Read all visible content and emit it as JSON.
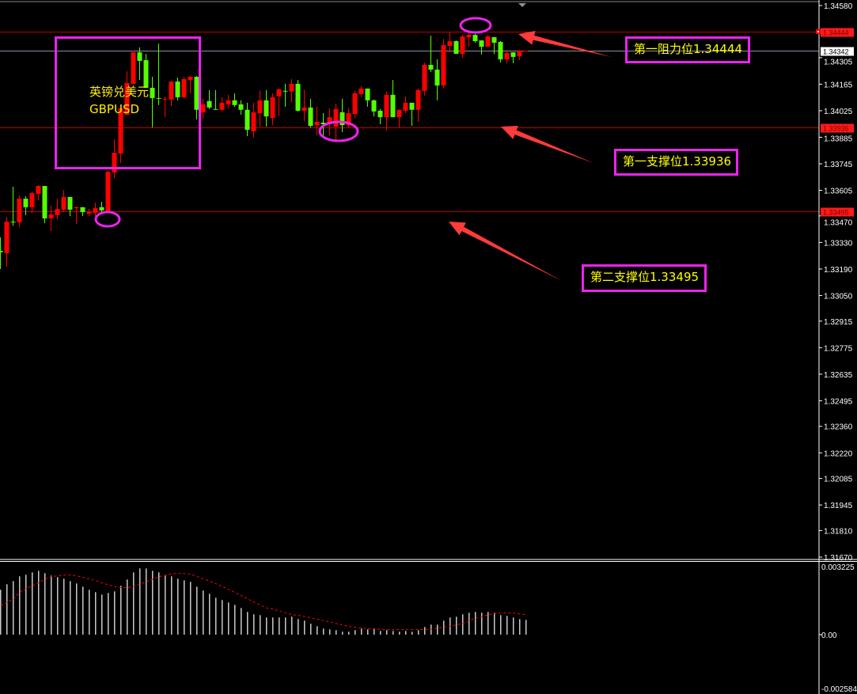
{
  "chart_data": {
    "type": "candlestick",
    "symbol_cn": "英镑兑美元",
    "symbol": "GBPUSD",
    "colors": {
      "bull": "#ff0000",
      "bear": "#55ff00",
      "background": "#000000",
      "level_line": "#c00000",
      "current_price_line": "#8a8fa0",
      "annotation_box": "#ee22ee",
      "annotation_text": "#ffff00",
      "arrow": "#ff3b3b",
      "macd_histogram": "#c8c8c8",
      "macd_signal": "#ff0000"
    },
    "price_axis": {
      "range": [
        1.3167,
        1.3458
      ],
      "ticks": [
        "1.34580",
        "1.34305",
        "1.34165",
        "1.34025",
        "1.33885",
        "1.33745",
        "1.33605",
        "1.33470",
        "1.33330",
        "1.33190",
        "1.33050",
        "1.32915",
        "1.32775",
        "1.32635",
        "1.32495",
        "1.32360",
        "1.32220",
        "1.32085",
        "1.31945",
        "1.31810",
        "1.31670"
      ]
    },
    "levels": [
      {
        "price": 1.34444,
        "label": "1.34444",
        "kind": "resistance"
      },
      {
        "price": 1.34342,
        "label": "1.34342",
        "kind": "current"
      },
      {
        "price": 1.33936,
        "label": "1.33936",
        "kind": "support"
      },
      {
        "price": 1.33495,
        "label": "1.33495",
        "kind": "support"
      }
    ],
    "candles_ohlc": [
      [
        1.33286,
        1.33357,
        1.3319,
        1.33278
      ],
      [
        1.33273,
        1.33465,
        1.33202,
        1.3344
      ],
      [
        1.3344,
        1.33624,
        1.33419,
        1.33436
      ],
      [
        1.33436,
        1.33578,
        1.33411,
        1.33561
      ],
      [
        1.33561,
        1.33574,
        1.33474,
        1.33516
      ],
      [
        1.33516,
        1.33599,
        1.33486,
        1.3359
      ],
      [
        1.33586,
        1.33632,
        1.33553,
        1.33628
      ],
      [
        1.33628,
        1.33628,
        1.33432,
        1.33457
      ],
      [
        1.33457,
        1.33524,
        1.3339,
        1.33478
      ],
      [
        1.33474,
        1.33561,
        1.33453,
        1.33507
      ],
      [
        1.33503,
        1.33607,
        1.33494,
        1.3357
      ],
      [
        1.3357,
        1.3357,
        1.33469,
        1.33503
      ],
      [
        1.33511,
        1.3352,
        1.33428,
        1.33516
      ],
      [
        1.33516,
        1.33516,
        1.33469,
        1.3349
      ],
      [
        1.33482,
        1.33507,
        1.33469,
        1.3349
      ],
      [
        1.33486,
        1.3354,
        1.33469,
        1.33511
      ],
      [
        1.33516,
        1.33544,
        1.3349,
        1.33499
      ],
      [
        1.33494,
        1.33707,
        1.33494,
        1.33703
      ],
      [
        1.33699,
        1.33874,
        1.3367,
        1.33803
      ],
      [
        1.33799,
        1.34038,
        1.33749,
        1.34038
      ],
      [
        1.34004,
        1.34233,
        1.34004,
        1.34171
      ],
      [
        1.34167,
        1.34342,
        1.34167,
        1.34333
      ],
      [
        1.34333,
        1.34359,
        1.34187,
        1.34288
      ],
      [
        1.34292,
        1.34325,
        1.34146,
        1.34146
      ],
      [
        1.34146,
        1.34204,
        1.33937,
        1.34092
      ],
      [
        1.34092,
        1.34379,
        1.34055,
        1.34088
      ],
      [
        1.34084,
        1.34101,
        1.33991,
        1.34088
      ],
      [
        1.34084,
        1.34183,
        1.34051,
        1.34179
      ],
      [
        1.34179,
        1.342,
        1.3408,
        1.34096
      ],
      [
        1.34096,
        1.34204,
        1.34092,
        1.34192
      ],
      [
        1.34187,
        1.34208,
        1.34117,
        1.34204
      ],
      [
        1.34204,
        1.34208,
        1.33979,
        1.3403
      ],
      [
        1.34017,
        1.34088,
        1.33983,
        1.34059
      ],
      [
        1.34076,
        1.34134,
        1.34034,
        1.34042
      ],
      [
        1.34034,
        1.34134,
        1.3403,
        1.3403
      ],
      [
        1.3403,
        1.34096,
        1.34021,
        1.34067
      ],
      [
        1.34059,
        1.34109,
        1.34038,
        1.3408
      ],
      [
        1.3408,
        1.34117,
        1.34046,
        1.34055
      ],
      [
        1.34059,
        1.3408,
        1.34004,
        1.3403
      ],
      [
        1.3403,
        1.34067,
        1.33891,
        1.33924
      ],
      [
        1.33916,
        1.34067,
        1.33883,
        1.34017
      ],
      [
        1.34012,
        1.3413,
        1.33941,
        1.3408
      ],
      [
        1.3408,
        1.34134,
        1.33941,
        1.33995
      ],
      [
        1.33987,
        1.34117,
        1.33949,
        1.34096
      ],
      [
        1.34101,
        1.34142,
        1.33999,
        1.34138
      ],
      [
        1.3413,
        1.34167,
        1.34046,
        1.34126
      ],
      [
        1.34126,
        1.34192,
        1.34071,
        1.34167
      ],
      [
        1.34167,
        1.34187,
        1.34021,
        1.34025
      ],
      [
        1.34025,
        1.34134,
        1.3397,
        1.34042
      ],
      [
        1.34042,
        1.34088,
        1.33937,
        1.33945
      ],
      [
        1.33949,
        1.34046,
        1.33895,
        1.33966
      ],
      [
        1.33962,
        1.34012,
        1.33891,
        1.33954
      ],
      [
        1.33954,
        1.34038,
        1.33895,
        1.33991
      ],
      [
        1.33941,
        1.34063,
        1.33866,
        1.34034
      ],
      [
        1.34017,
        1.34088,
        1.33912,
        1.33949
      ],
      [
        1.33949,
        1.34038,
        1.33933,
        1.34012
      ],
      [
        1.34008,
        1.3413,
        1.33987,
        1.34117
      ],
      [
        1.34113,
        1.34154,
        1.34096,
        1.34142
      ],
      [
        1.34142,
        1.34142,
        1.34046,
        1.3408
      ],
      [
        1.3408,
        1.34084,
        1.33995,
        1.34021
      ],
      [
        1.34025,
        1.34034,
        1.33954,
        1.33991
      ],
      [
        1.33991,
        1.34126,
        1.3392,
        1.34109
      ],
      [
        1.34109,
        1.34187,
        1.33991,
        1.33991
      ],
      [
        1.33991,
        1.3403,
        1.33937,
        1.3403
      ],
      [
        1.34025,
        1.34101,
        1.34012,
        1.34067
      ],
      [
        1.34067,
        1.34067,
        1.33945,
        1.3403
      ],
      [
        1.3403,
        1.34142,
        1.33966,
        1.34134
      ],
      [
        1.3413,
        1.34279,
        1.34105,
        1.34267
      ],
      [
        1.34267,
        1.34421,
        1.34229,
        1.34242
      ],
      [
        1.34242,
        1.34296,
        1.3408,
        1.34158
      ],
      [
        1.34158,
        1.34404,
        1.34142,
        1.34371
      ],
      [
        1.34367,
        1.34438,
        1.34333,
        1.34392
      ],
      [
        1.34392,
        1.34396,
        1.34325,
        1.34325
      ],
      [
        1.34325,
        1.34425,
        1.34305,
        1.34417
      ],
      [
        1.34413,
        1.34438,
        1.34363,
        1.34425
      ],
      [
        1.34425,
        1.3443,
        1.34384,
        1.34392
      ],
      [
        1.34396,
        1.34396,
        1.34321,
        1.34363
      ],
      [
        1.34363,
        1.34425,
        1.34363,
        1.34417
      ],
      [
        1.34413,
        1.34413,
        1.34325,
        1.34384
      ],
      [
        1.34388,
        1.34392,
        1.34279,
        1.34296
      ],
      [
        1.34296,
        1.34346,
        1.34275,
        1.34329
      ],
      [
        1.34333,
        1.34333,
        1.34275,
        1.34309
      ],
      [
        1.34313,
        1.34346,
        1.34292,
        1.34342
      ],
      [
        1.34342,
        1.34342,
        1.34342,
        1.34342
      ]
    ],
    "macd": {
      "axis_ticks": [
        "0.003225",
        "0.00",
        "-0.002584"
      ],
      "range": [
        -0.002584,
        0.003225
      ],
      "histogram": [
        0.002125,
        0.002388,
        0.002538,
        0.002763,
        0.002838,
        0.00295,
        0.003025,
        0.002913,
        0.0028,
        0.002725,
        0.00265,
        0.002538,
        0.002425,
        0.002275,
        0.002125,
        0.002013,
        0.0019,
        0.001975,
        0.00205,
        0.002313,
        0.002613,
        0.00295,
        0.003138,
        0.003138,
        0.003025,
        0.00295,
        0.0028,
        0.002763,
        0.00265,
        0.002575,
        0.0025,
        0.002275,
        0.002088,
        0.001938,
        0.00175,
        0.001638,
        0.001525,
        0.001413,
        0.001263,
        0.001075,
        0.000963,
        0.000925,
        0.000813,
        0.000813,
        0.000813,
        0.000813,
        0.00085,
        0.000738,
        0.000663,
        0.000513,
        0.0004,
        0.000288,
        0.00025,
        0.000213,
        0.000138,
        0.000138,
        0.000213,
        0.000288,
        0.00025,
        0.000288,
        0.000175,
        0.000213,
        0.000175,
        0.000138,
        0.000175,
        0.000138,
        0.000213,
        0.000363,
        0.000475,
        0.000475,
        0.000663,
        0.000813,
        0.00085,
        0.000963,
        0.001038,
        0.001075,
        0.001038,
        0.001075,
        0.001038,
        0.000925,
        0.000888,
        0.000813,
        0.000738,
        0.0007
      ],
      "signal": [
        0.001375,
        0.001538,
        0.001688,
        0.002013,
        0.002188,
        0.002313,
        0.00245,
        0.002638,
        0.00275,
        0.002788,
        0.002825,
        0.002825,
        0.002788,
        0.002713,
        0.002638,
        0.002563,
        0.00245,
        0.002363,
        0.002288,
        0.002225,
        0.002225,
        0.002288,
        0.0024,
        0.002513,
        0.002625,
        0.00275,
        0.002813,
        0.002888,
        0.0029,
        0.0029,
        0.002863,
        0.002763,
        0.002638,
        0.002538,
        0.002413,
        0.002288,
        0.002138,
        0.002,
        0.00185,
        0.0017,
        0.001538,
        0.0014,
        0.001263,
        0.001213,
        0.001113,
        0.001038,
        0.00095,
        0.000913,
        0.000863,
        0.0008,
        0.000725,
        0.000663,
        0.000613,
        0.000525,
        0.000463,
        0.000388,
        0.00035,
        0.000313,
        0.000288,
        0.000275,
        0.00025,
        0.000238,
        0.000238,
        0.000238,
        0.000238,
        0.000238,
        0.000238,
        0.000238,
        0.000263,
        0.000313,
        0.00035,
        0.0004,
        0.000463,
        0.000538,
        0.000663,
        0.000788,
        0.00085,
        0.000938,
        0.001,
        0.001025,
        0.001025,
        0.001025,
        0.000988,
        0.00095
      ]
    }
  },
  "annotations": {
    "resistance_1": "第一阻力位1.34444",
    "support_1": "第一支撑位1.33936",
    "support_2": "第二支撑位1.33495"
  }
}
